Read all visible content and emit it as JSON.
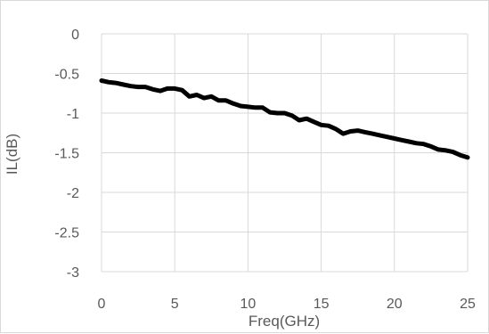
{
  "chart_data": {
    "type": "line",
    "title": "",
    "xlabel": "Freq(GHz)",
    "ylabel": "IL(dB)",
    "xlim": [
      0,
      25
    ],
    "ylim": [
      -3,
      0
    ],
    "x_ticks": [
      0,
      5,
      10,
      15,
      20,
      25
    ],
    "y_ticks": [
      0,
      -0.5,
      -1,
      -1.5,
      -2,
      -2.5,
      -3
    ],
    "x_tick_labels": [
      "0",
      "5",
      "10",
      "15",
      "20",
      "25"
    ],
    "y_tick_labels": [
      "0",
      "-0.5",
      "-1",
      "-1.5",
      "-2",
      "-2.5",
      "-3"
    ],
    "grid": true,
    "legend": "none",
    "line_color": "#000000",
    "series": [
      {
        "x": [
          0,
          0.5,
          1,
          1.5,
          2,
          2.5,
          3,
          3.5,
          4,
          4.5,
          5,
          5.5,
          6,
          6.5,
          7,
          7.5,
          8,
          8.5,
          9,
          9.5,
          10,
          10.5,
          11,
          11.5,
          12,
          12.5,
          13,
          13.5,
          14,
          14.5,
          15,
          15.5,
          16,
          16.5,
          17,
          17.5,
          18,
          18.5,
          19,
          19.5,
          20,
          20.5,
          21,
          21.5,
          22,
          22.5,
          23,
          23.5,
          24,
          24.5,
          25
        ],
        "y": [
          -0.59,
          -0.61,
          -0.62,
          -0.64,
          -0.66,
          -0.67,
          -0.67,
          -0.7,
          -0.72,
          -0.69,
          -0.69,
          -0.71,
          -0.79,
          -0.77,
          -0.81,
          -0.79,
          -0.84,
          -0.84,
          -0.88,
          -0.91,
          -0.92,
          -0.93,
          -0.93,
          -0.99,
          -1.0,
          -1.0,
          -1.03,
          -1.09,
          -1.07,
          -1.11,
          -1.15,
          -1.16,
          -1.2,
          -1.26,
          -1.23,
          -1.22,
          -1.24,
          -1.26,
          -1.28,
          -1.3,
          -1.32,
          -1.34,
          -1.36,
          -1.38,
          -1.39,
          -1.42,
          -1.46,
          -1.47,
          -1.49,
          -1.53,
          -1.56
        ]
      }
    ]
  }
}
